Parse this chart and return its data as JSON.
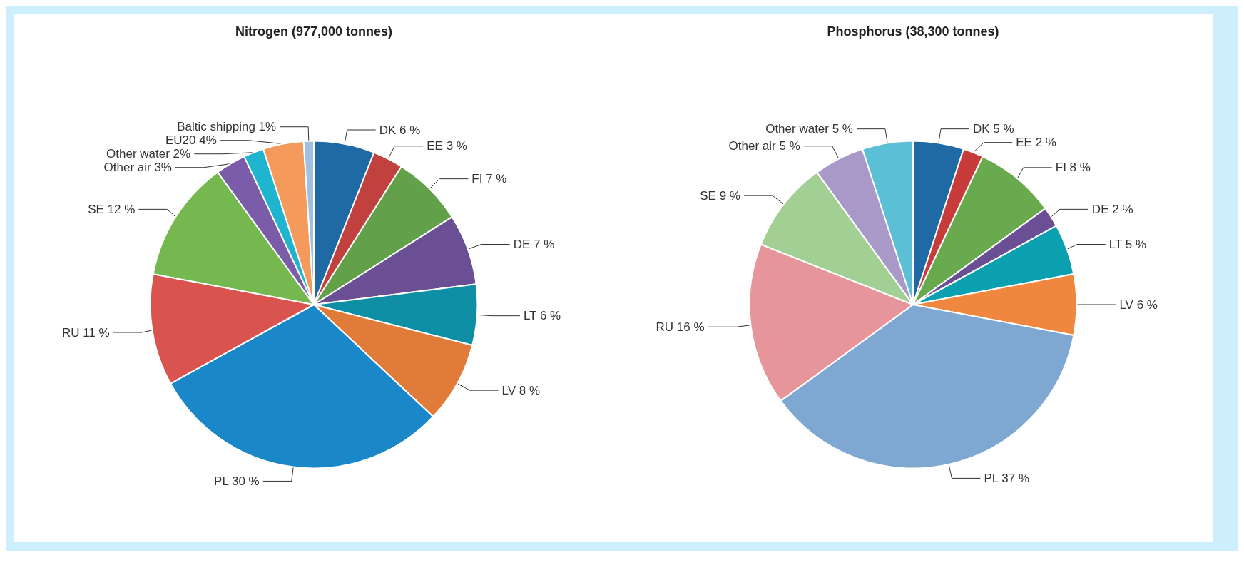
{
  "chart_data": [
    {
      "type": "pie",
      "title": "Nitrogen (977,000 tonnes)",
      "categories": [
        "DK",
        "EE",
        "FI",
        "DE",
        "LT",
        "LV",
        "PL",
        "RU",
        "SE",
        "Other air",
        "Other water",
        "EU20",
        "Baltic shipping"
      ],
      "values": [
        6,
        3,
        7,
        7,
        6,
        8,
        30,
        11,
        12,
        3,
        2,
        4,
        1
      ],
      "value_labels": [
        "6 %",
        "3 %",
        "7 %",
        "7 %",
        "6 %",
        "8 %",
        "30 %",
        "11 %",
        "12 %",
        "3%",
        "2%",
        "4%",
        "1%"
      ],
      "colors": [
        "#1f6aa5",
        "#c0413e",
        "#62a04a",
        "#6b4f94",
        "#0e8fa5",
        "#e07b39",
        "#1a87c9",
        "#d9534f",
        "#76b850",
        "#7a5ca8",
        "#1fb5cf",
        "#f49a5a",
        "#9fc0e0"
      ]
    },
    {
      "type": "pie",
      "title": "Phosphorus (38,300 tonnes)",
      "categories": [
        "DK",
        "EE",
        "FI",
        "DE",
        "LT",
        "LV",
        "PL",
        "RU",
        "SE",
        "Other air",
        "Other water"
      ],
      "values": [
        5,
        2,
        8,
        2,
        5,
        6,
        37,
        16,
        9,
        5,
        5
      ],
      "value_labels": [
        "5 %",
        "2 %",
        "8 %",
        "2 %",
        "5 %",
        "6 %",
        "37 %",
        "16 %",
        "9 %",
        "5 %",
        "5 %"
      ],
      "colors": [
        "#1f6aa5",
        "#c73b3b",
        "#6aaa4f",
        "#6b4f94",
        "#0aa0b0",
        "#f0873e",
        "#7ea7d1",
        "#e6959a",
        "#a2cf94",
        "#a899c8",
        "#5bbfd6"
      ]
    }
  ]
}
